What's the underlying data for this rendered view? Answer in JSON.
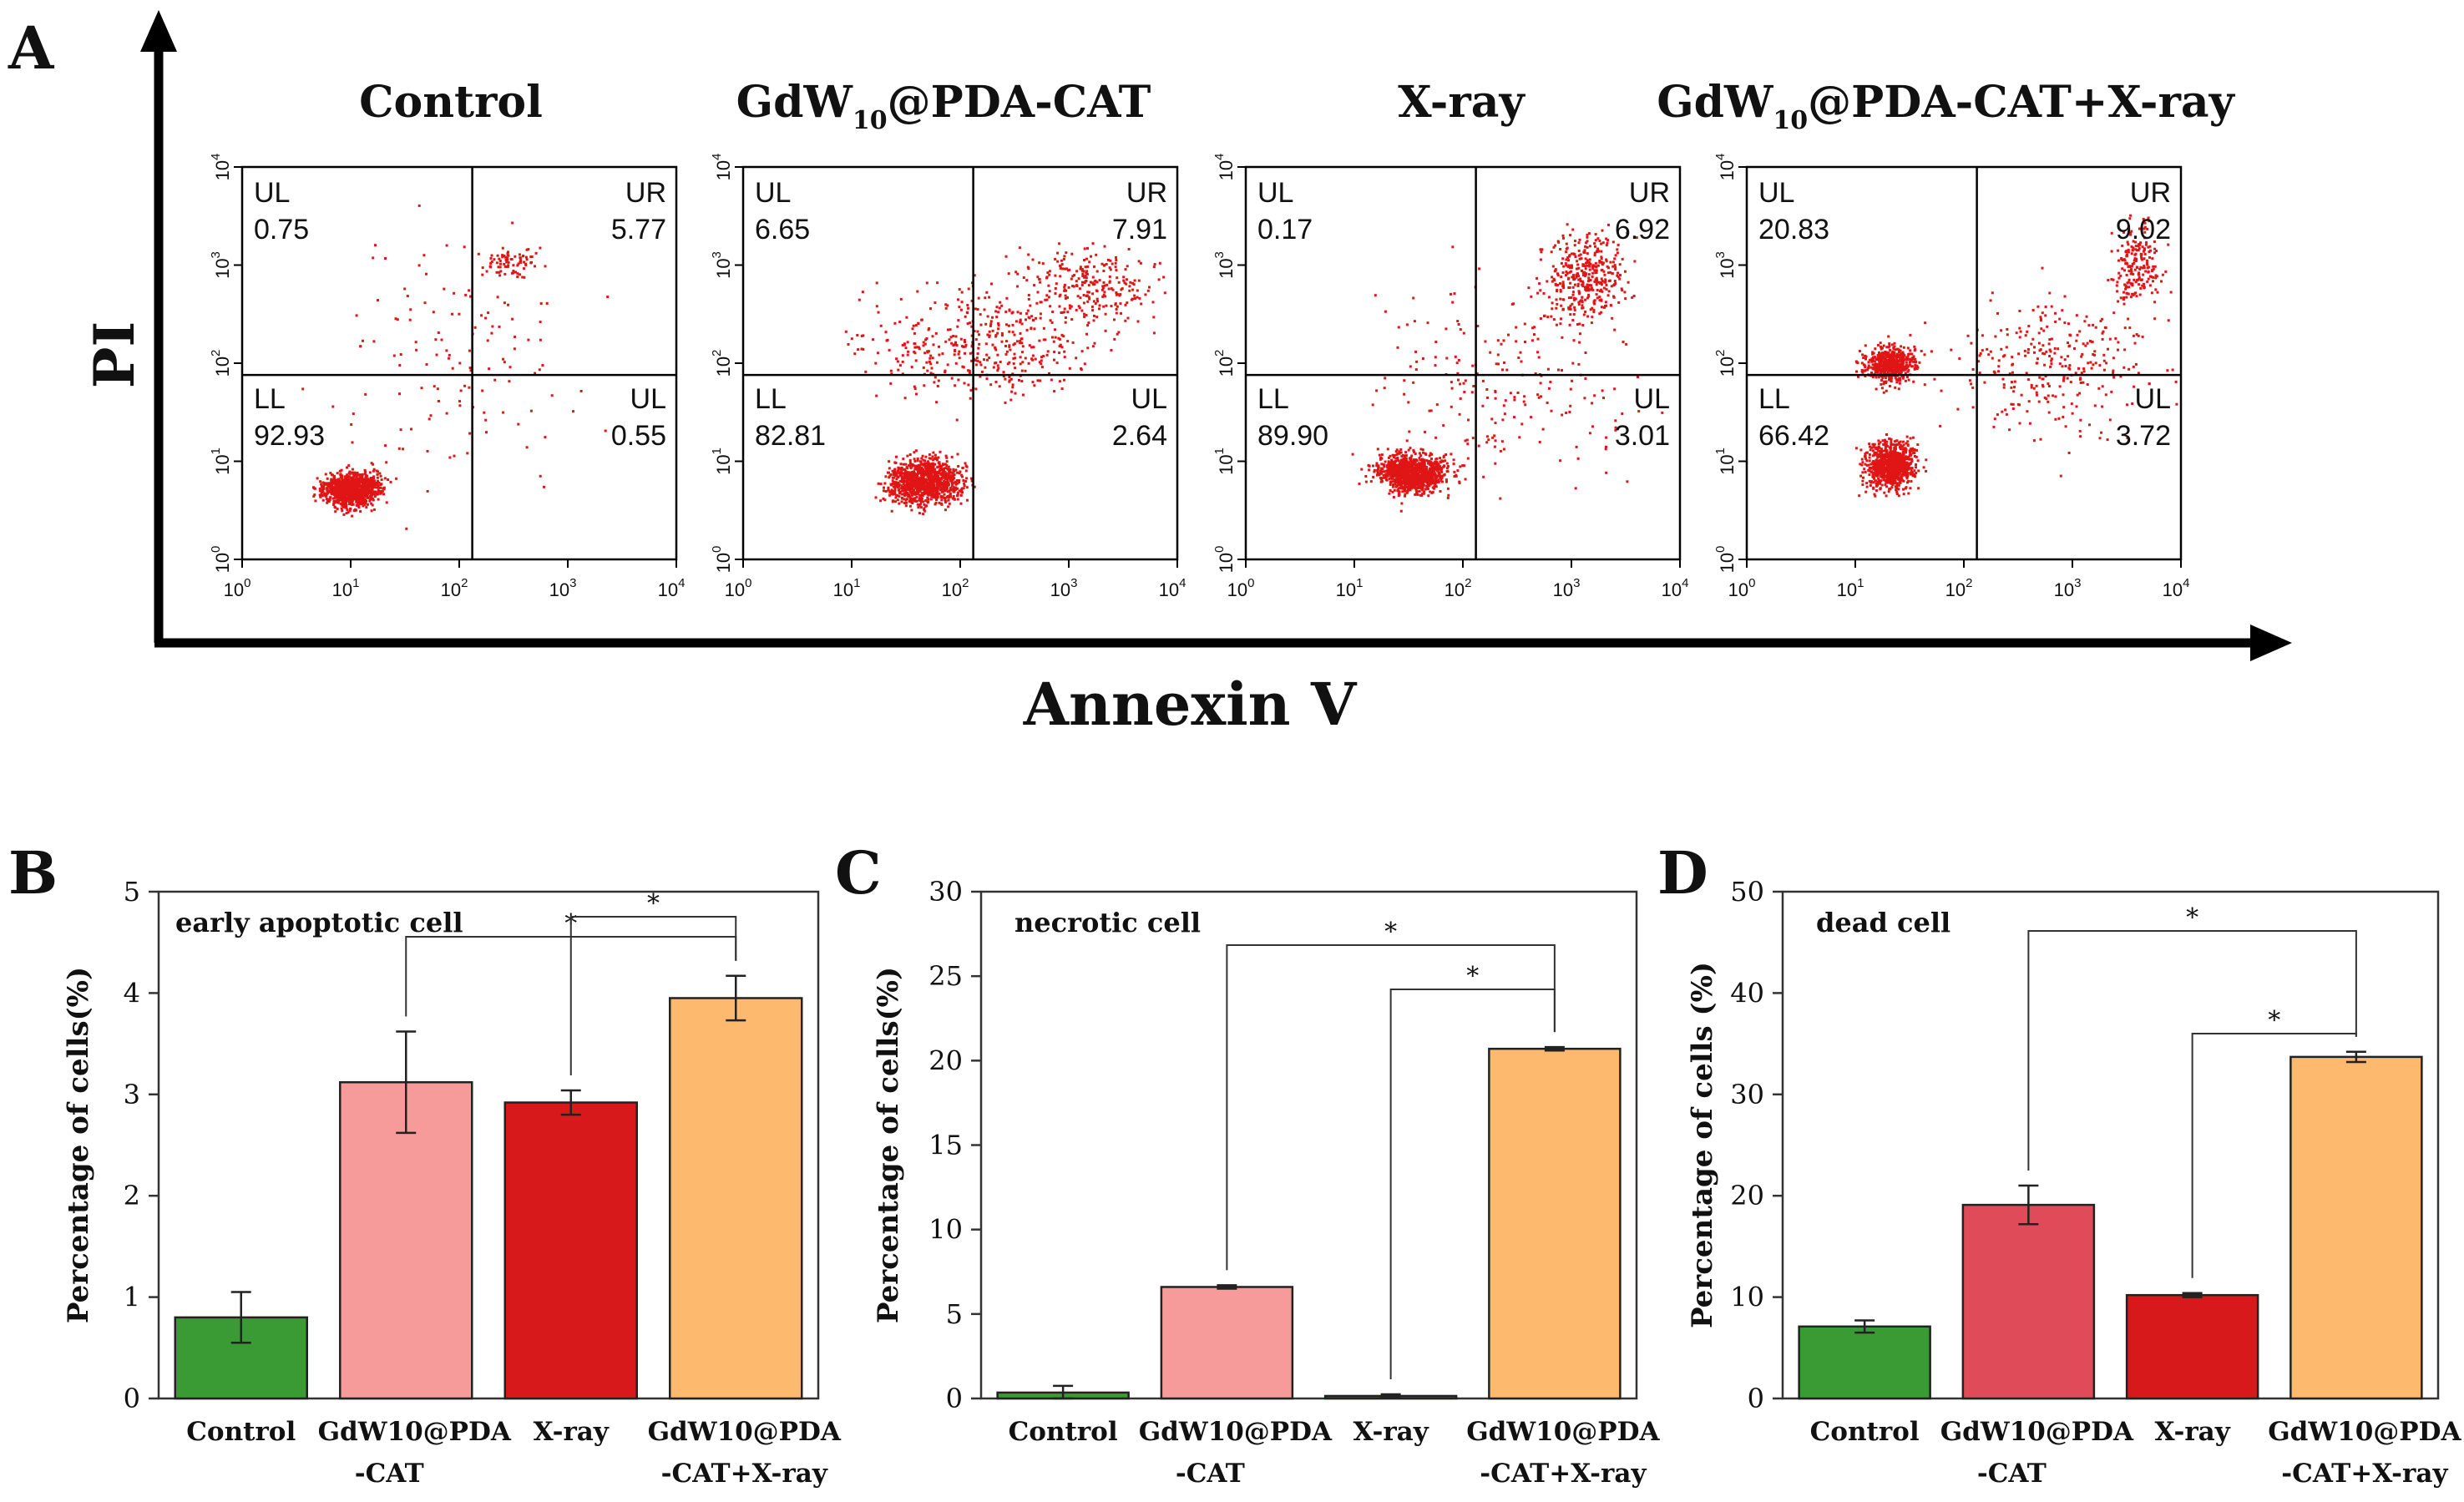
{
  "panel_letters": {
    "a": "A",
    "b": "B",
    "c": "C",
    "d": "D"
  },
  "panel_a": {
    "y_axis_label": "PI",
    "x_axis_label": "Annexin V",
    "tick_labels": [
      "10",
      "10",
      "10",
      "10",
      "10"
    ],
    "tick_exponents": [
      "0",
      "1",
      "2",
      "3",
      "4"
    ],
    "plots": [
      {
        "title_prefix": "Control",
        "title_sub": "",
        "title_suffix": "",
        "ul_label": "UL",
        "ul_value": "0.75",
        "ur_label": "UR",
        "ur_value": "5.77",
        "ll_label": "LL",
        "ll_value": "92.93",
        "lr_label": "UL",
        "lr_value": "0.55"
      },
      {
        "title_prefix": "GdW",
        "title_sub": "10",
        "title_suffix": "@PDA-CAT",
        "ul_label": "UL",
        "ul_value": "6.65",
        "ur_label": "UR",
        "ur_value": "7.91",
        "ll_label": "LL",
        "ll_value": "82.81",
        "lr_label": "UL",
        "lr_value": "2.64"
      },
      {
        "title_prefix": "X-ray",
        "title_sub": "",
        "title_suffix": "",
        "ul_label": "UL",
        "ul_value": "0.17",
        "ur_label": "UR",
        "ur_value": "6.92",
        "ll_label": "LL",
        "ll_value": "89.90",
        "lr_label": "UL",
        "lr_value": "3.01"
      },
      {
        "title_prefix": "GdW",
        "title_sub": "10",
        "title_suffix": "@PDA-CAT+X-ray",
        "ul_label": "UL",
        "ul_value": "20.83",
        "ur_label": "UR",
        "ur_value": "9.02",
        "ll_label": "LL",
        "ll_value": "66.42",
        "lr_label": "UL",
        "lr_value": "3.72"
      }
    ]
  },
  "chart_data": [
    {
      "type": "bar",
      "panel": "B",
      "title": "early apoptotic cell",
      "ylabel": "Percentage of cells(%)",
      "ylim": [
        0,
        5
      ],
      "yticks": [
        0,
        1,
        2,
        3,
        4,
        5
      ],
      "categories": [
        {
          "line1": "Control",
          "line2": ""
        },
        {
          "line1": "GdW10@PDA",
          "line2": "-CAT"
        },
        {
          "line1": "X-ray",
          "line2": ""
        },
        {
          "line1": "GdW10@PDA",
          "line2": "-CAT+X-ray"
        }
      ],
      "values": [
        0.8,
        3.12,
        2.92,
        3.95
      ],
      "errors": [
        0.25,
        0.5,
        0.12,
        0.22
      ],
      "colors": [
        "#3a9b35",
        "#f69a9a",
        "#d7191c",
        "#fdb96e"
      ],
      "significance": [
        {
          "from": 1,
          "to": 3,
          "label": "*"
        },
        {
          "from": 2,
          "to": 3,
          "label": "*"
        }
      ]
    },
    {
      "type": "bar",
      "panel": "C",
      "title": "necrotic cell",
      "ylabel": "Percentage of cells(%)",
      "ylim": [
        0,
        30
      ],
      "yticks": [
        0,
        5,
        10,
        15,
        20,
        25,
        30
      ],
      "categories": [
        {
          "line1": "Control",
          "line2": ""
        },
        {
          "line1": "GdW10@PDA",
          "line2": "-CAT"
        },
        {
          "line1": "X-ray",
          "line2": ""
        },
        {
          "line1": "GdW10@PDA",
          "line2": "-CAT+X-ray"
        }
      ],
      "values": [
        0.35,
        6.6,
        0.15,
        20.7
      ],
      "errors": [
        0.4,
        0.1,
        0.1,
        0.1
      ],
      "colors": [
        "#3a9b35",
        "#f69a9a",
        "#d7191c",
        "#fdb96e"
      ],
      "significance": [
        {
          "from": 1,
          "to": 3,
          "label": "*"
        },
        {
          "from": 2,
          "to": 3,
          "label": "*"
        }
      ]
    },
    {
      "type": "bar",
      "panel": "D",
      "title": "dead cell",
      "ylabel": "Percentage of cells (%)",
      "ylim": [
        0,
        50
      ],
      "yticks": [
        0,
        10,
        20,
        30,
        40,
        50
      ],
      "categories": [
        {
          "line1": "Control",
          "line2": ""
        },
        {
          "line1": "GdW10@PDA",
          "line2": "-CAT"
        },
        {
          "line1": "X-ray",
          "line2": ""
        },
        {
          "line1": "GdW10@PDA",
          "line2": "-CAT+X-ray"
        }
      ],
      "values": [
        7.1,
        19.1,
        10.2,
        33.7
      ],
      "errors": [
        0.6,
        1.9,
        0.2,
        0.5
      ],
      "colors": [
        "#3a9b35",
        "#e04b5a",
        "#d7191c",
        "#fdb96e"
      ],
      "significance": [
        {
          "from": 1,
          "to": 3,
          "label": "*"
        },
        {
          "from": 2,
          "to": 3,
          "label": "*"
        }
      ]
    }
  ]
}
